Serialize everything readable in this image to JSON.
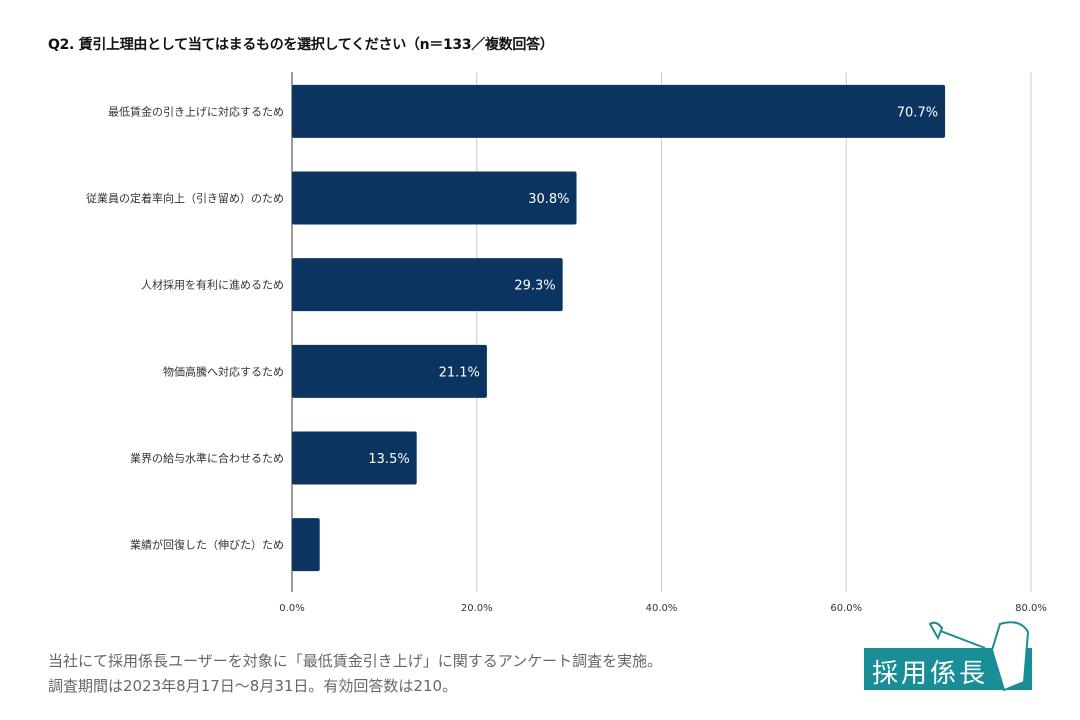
{
  "chart_data": {
    "type": "bar",
    "orientation": "horizontal",
    "title": "Q2. 賃引上理由として当てはまるものを選択してください（n＝133／複数回答）",
    "categories": [
      "最低賃金の引き上げに対応するため",
      "従業員の定着率向上（引き留め）のため",
      "人材採用を有利に進めるため",
      "物価高騰へ対応するため",
      "業界の給与水準に合わせるため",
      "業績が回復した（伸びた）ため"
    ],
    "values": [
      70.7,
      30.8,
      29.3,
      21.1,
      13.5,
      3.0
    ],
    "data_labels": [
      "70.7%",
      "30.8%",
      "29.3%",
      "21.1%",
      "13.5%",
      ""
    ],
    "xlim": [
      0,
      80
    ],
    "xticks": [
      "0.0%",
      "20.0%",
      "40.0%",
      "60.0%",
      "80.0%"
    ],
    "xlabel": "",
    "ylabel": "",
    "grid": true,
    "colors": {
      "bar": "#0b3560",
      "grid": "#cccccc"
    }
  },
  "notes": [
    "当社にて採用係長ユーザーを対象に「最低賃金引き上げ」に関するアンケート調査を実施。",
    "調査期間は2023年8月17日〜8月31日。有効回答数は210。"
  ],
  "logo": {
    "text": "採用係長",
    "color": "#1a8e96"
  }
}
